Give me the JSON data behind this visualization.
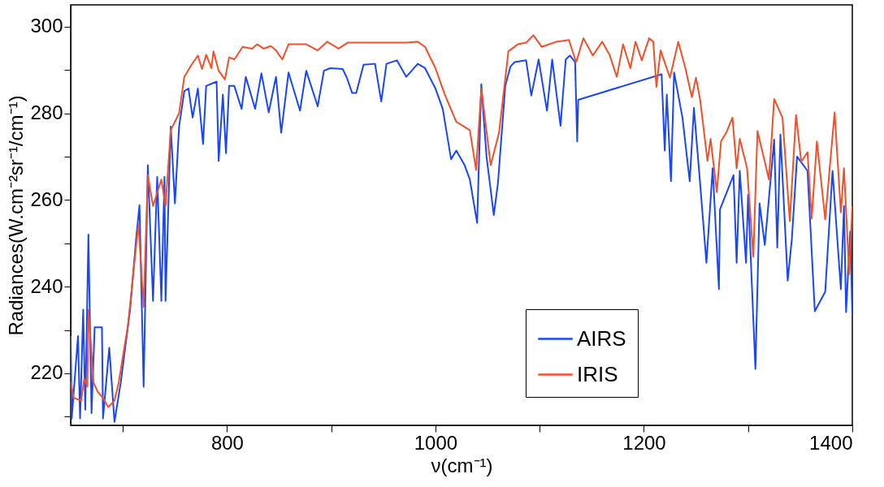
{
  "chart_data": {
    "type": "line",
    "xlabel": "ν(cm⁻¹)",
    "ylabel": "Radiances(W.cm⁻²sr⁻¹/cm⁻¹)",
    "xlim": [
      650,
      1400
    ],
    "ylim": [
      208,
      305
    ],
    "xticks": [
      {
        "value": 700,
        "label": null
      },
      800,
      {
        "value": 900,
        "label": null
      },
      1000,
      {
        "value": 1100,
        "label": null
      },
      1200,
      {
        "value": 1300,
        "label": null
      },
      1400
    ],
    "yticks": [
      {
        "value": 210,
        "label": null
      },
      220,
      {
        "value": 230,
        "label": null
      },
      240,
      {
        "value": 250,
        "label": null
      },
      260,
      {
        "value": 270,
        "label": null
      },
      280,
      {
        "value": 290,
        "label": null
      },
      300
    ],
    "grid": false,
    "legend": "bottom right",
    "marker": "none",
    "line_style": "solid",
    "series": [
      {
        "name": "AIRS",
        "color": "#1a47f5",
        "x": [
          650,
          651,
          657,
          659,
          662,
          664,
          667,
          670,
          673,
          680,
          681,
          687,
          692,
          698,
          707,
          713,
          716,
          720,
          724,
          729,
          733,
          737,
          740,
          741,
          746,
          750,
          754,
          759,
          763,
          767,
          772,
          777,
          780,
          790,
          792,
          796,
          799,
          802,
          807,
          814,
          818,
          827,
          833,
          840,
          847,
          852,
          859,
          870,
          876,
          887,
          893,
          899,
          911,
          915,
          920,
          924,
          931,
          942,
          948,
          953,
          963,
          972,
          983,
          990,
          1000,
          1007,
          1015,
          1020,
          1028,
          1033,
          1040,
          1044,
          1049,
          1056,
          1060,
          1067,
          1072,
          1076,
          1087,
          1092,
          1099,
          1107,
          1112,
          1120,
          1125,
          1129,
          1134,
          1136,
          1137,
          1217,
          1220,
          1222,
          1226,
          1229,
          1237,
          1244,
          1248,
          1254,
          1260,
          1266,
          1272,
          1273,
          1286,
          1289,
          1292,
          1298,
          1300,
          1307,
          1311,
          1316,
          1325,
          1328,
          1331,
          1338,
          1342,
          1347,
          1357,
          1364,
          1374,
          1381,
          1389,
          1392,
          1394,
          1398,
          1400
        ],
        "values": [
          228.6,
          209.6,
          228.6,
          209.6,
          234.7,
          211.6,
          252,
          210.8,
          230.6,
          230.6,
          209.6,
          225.9,
          208.8,
          217.8,
          234.7,
          251.6,
          258.8,
          216.9,
          268,
          236.7,
          265.3,
          236.7,
          265.3,
          236.7,
          276.9,
          259.2,
          276.9,
          285.1,
          285.7,
          279,
          285.7,
          272.9,
          286.3,
          287.3,
          269,
          284.3,
          270.8,
          286.3,
          286.3,
          281,
          288.4,
          281,
          289.2,
          280.2,
          288.4,
          275.5,
          289.4,
          280.6,
          289.8,
          281.6,
          289.8,
          290.4,
          290.2,
          288.2,
          284.7,
          284.7,
          291.2,
          291.4,
          282.7,
          291.4,
          292.2,
          288.4,
          291.4,
          290.4,
          285.7,
          281,
          269.4,
          271.4,
          268,
          264.7,
          254.7,
          286.7,
          270,
          256.5,
          263.9,
          286.3,
          290.8,
          291.8,
          292.2,
          284.1,
          292.4,
          280.6,
          292.4,
          277.1,
          292.4,
          293.3,
          291.8,
          273.5,
          283.1,
          289,
          271.4,
          284.3,
          264.3,
          289.4,
          279,
          264.3,
          281.2,
          263.7,
          245.5,
          267.3,
          239.4,
          257.8,
          265.7,
          245.5,
          266.7,
          245.5,
          261.2,
          221,
          259.2,
          249.6,
          273.9,
          249,
          275.1,
          241.4,
          251,
          270,
          266.7,
          234.3,
          238.8,
          266.7,
          239.4,
          258.6,
          234.1,
          252.7,
          233.7
        ]
      },
      {
        "name": "IRIS",
        "color": "#f0502a",
        "x": [
          650,
          653,
          660,
          663,
          666,
          667,
          672,
          676,
          681,
          686,
          692,
          696,
          705,
          715,
          720,
          724,
          729,
          737,
          741,
          746,
          754,
          759,
          766,
          772,
          776,
          780,
          785,
          787,
          792,
          798,
          802,
          807,
          815,
          824,
          829,
          835,
          842,
          847,
          853,
          859,
          876,
          887,
          896,
          907,
          916,
          942,
          972,
          983,
          990,
          1000,
          1009,
          1020,
          1033,
          1039,
          1044,
          1053,
          1061,
          1070,
          1079,
          1087,
          1094,
          1102,
          1116,
          1128,
          1135,
          1142,
          1151,
          1160,
          1167,
          1174,
          1180,
          1187,
          1192,
          1198,
          1205,
          1209,
          1212,
          1216,
          1225,
          1233,
          1240,
          1246,
          1250,
          1254,
          1261,
          1264,
          1270,
          1274,
          1279,
          1285,
          1289,
          1292,
          1299,
          1305,
          1309,
          1316,
          1320,
          1325,
          1333,
          1340,
          1346,
          1351,
          1357,
          1361,
          1366,
          1374,
          1383,
          1389,
          1392,
          1397,
          1400
        ],
        "values": [
          218,
          214.3,
          213.7,
          218.8,
          216.9,
          234.7,
          217.8,
          215.7,
          214.3,
          212.2,
          213.7,
          217.8,
          231.2,
          254.5,
          235.3,
          265.7,
          258.6,
          264.7,
          258.6,
          276.1,
          280,
          288.4,
          291.2,
          293.3,
          290.2,
          293.5,
          290.4,
          294.3,
          289.8,
          287.8,
          292.9,
          292.4,
          295.3,
          294.9,
          295.9,
          294.9,
          295.5,
          294.5,
          292.4,
          295.9,
          295.9,
          294.5,
          296.5,
          294.9,
          296.3,
          296.3,
          296.3,
          296.5,
          295.3,
          290.4,
          284.3,
          278,
          276.1,
          266.9,
          285.7,
          268,
          275.5,
          294.3,
          295.9,
          296.3,
          298,
          295.3,
          296.5,
          296.9,
          291.8,
          297.3,
          293.3,
          296.5,
          293.5,
          288.4,
          295.9,
          290.4,
          296.5,
          292.2,
          297.3,
          296.5,
          286.1,
          294.5,
          288.2,
          296.5,
          290.2,
          283.7,
          288.2,
          283.1,
          269,
          274.1,
          261.8,
          273.5,
          275.5,
          279,
          267.3,
          274.1,
          267.3,
          246.9,
          275.9,
          268.8,
          264.7,
          283.3,
          279,
          255.1,
          279.6,
          268.8,
          271,
          255.7,
          273.5,
          255.5,
          280.2,
          257.1,
          267.3,
          242.9,
          258.6
        ]
      }
    ]
  }
}
